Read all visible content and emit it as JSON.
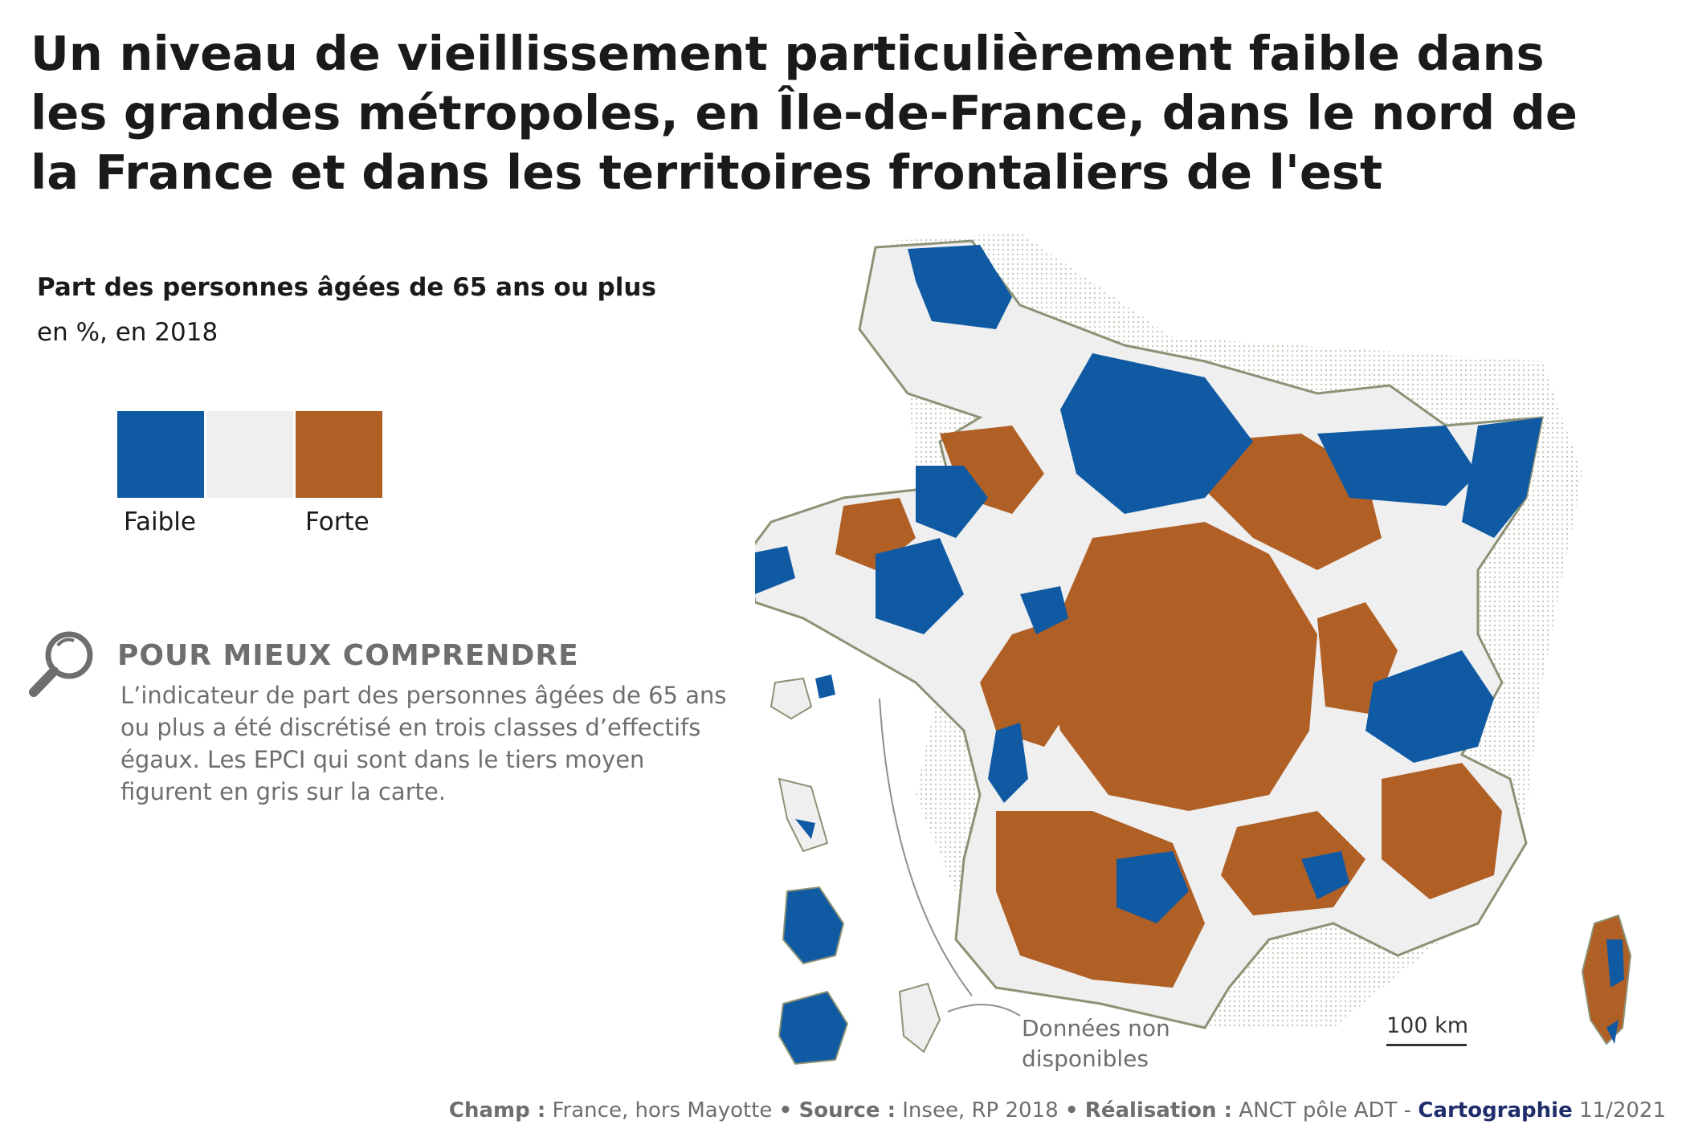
{
  "title": "Un niveau de vieillissement particulièrement faible dans les grandes métropoles, en Île-de-France, dans le nord de la France et dans les territoires frontaliers de l'est",
  "legend": {
    "title": "Part des personnes âgées de 65 ans ou plus",
    "subtitle": "en %, en 2018",
    "low_label": "Faible",
    "high_label": "Forte",
    "colors": {
      "low": "#0f5aa3",
      "mid": "#efefef",
      "high": "#b05f25"
    }
  },
  "info": {
    "icon": "magnifier-icon",
    "heading": "POUR MIEUX COMPRENDRE",
    "text": "L’indicateur de part des personnes âgées de 65 ans ou plus a été discrétisé en trois classes d’effectifs égaux. Les EPCI qui sont dans le tiers moyen figurent en gris sur la carte."
  },
  "map": {
    "no_data_label": "Données non disponibles",
    "scale_label": "100 km"
  },
  "footer": {
    "champ_label": "Champ :",
    "champ_value": "France, hors Mayotte",
    "source_label": "Source :",
    "source_value": "Insee, RP 2018",
    "realisation_label": "Réalisation :",
    "realisation_value": "ANCT pôle ADT -",
    "brand": "Cartographie",
    "date": "11/2021",
    "separator": "•"
  }
}
